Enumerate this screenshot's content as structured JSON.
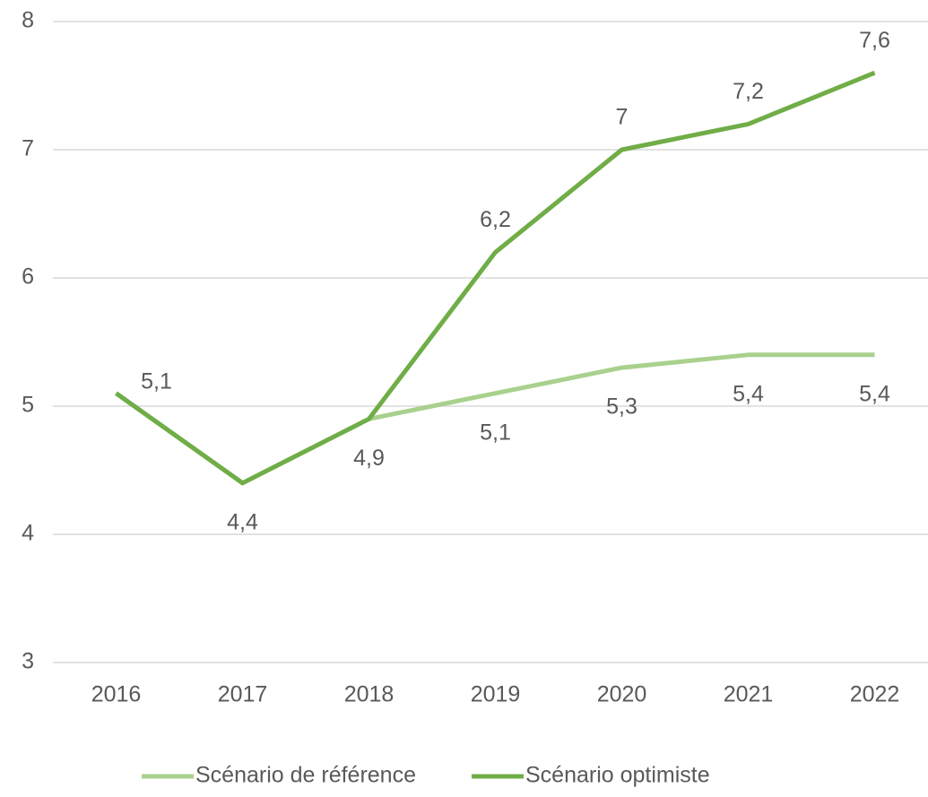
{
  "chart_data": {
    "type": "line",
    "categories": [
      "2016",
      "2017",
      "2018",
      "2019",
      "2020",
      "2021",
      "2022"
    ],
    "series": [
      {
        "name": "Scénario de référence",
        "color": "#a9d18e",
        "values": [
          5.1,
          4.4,
          4.9,
          5.1,
          5.3,
          5.4,
          5.4
        ],
        "value_labels": [
          "5,1",
          "4,4",
          "4,9",
          "5,1",
          "5,3",
          "5,4",
          "5,4"
        ]
      },
      {
        "name": "Scénario optimiste",
        "color": "#70ad47",
        "values": [
          5.1,
          4.4,
          4.9,
          6.2,
          7,
          7.2,
          7.6
        ],
        "value_labels": [
          null,
          null,
          null,
          "6,2",
          "7",
          "7,2",
          "7,6"
        ]
      }
    ],
    "ylim": [
      3,
      8
    ],
    "yticks": [
      3,
      4,
      5,
      6,
      7,
      8
    ],
    "grid": true,
    "legend": "bottom"
  }
}
